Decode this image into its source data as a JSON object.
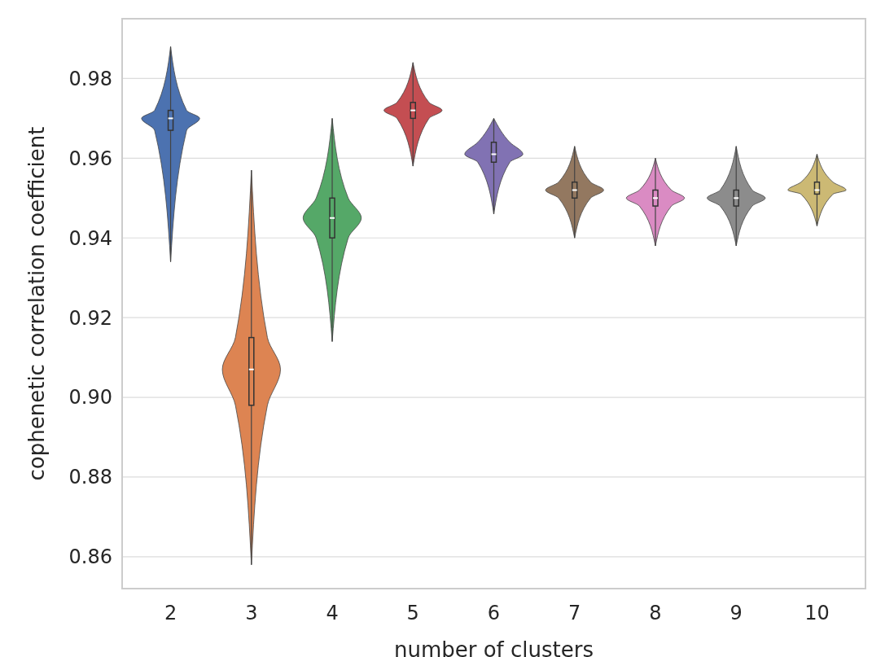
{
  "chart_data": {
    "type": "box",
    "xlabel": "number of clusters",
    "ylabel": "cophenetic correlation coefficient",
    "categories": [
      "2",
      "3",
      "4",
      "5",
      "6",
      "7",
      "8",
      "9",
      "10"
    ],
    "boxes": [
      {
        "low": 0.934,
        "q1": 0.967,
        "median": 0.97,
        "q3": 0.972,
        "high": 0.988
      },
      {
        "low": 0.858,
        "q1": 0.898,
        "median": 0.907,
        "q3": 0.915,
        "high": 0.957
      },
      {
        "low": 0.914,
        "q1": 0.94,
        "median": 0.945,
        "q3": 0.95,
        "high": 0.97
      },
      {
        "low": 0.958,
        "q1": 0.97,
        "median": 0.972,
        "q3": 0.974,
        "high": 0.984
      },
      {
        "low": 0.946,
        "q1": 0.959,
        "median": 0.961,
        "q3": 0.964,
        "high": 0.97
      },
      {
        "low": 0.94,
        "q1": 0.95,
        "median": 0.952,
        "q3": 0.954,
        "high": 0.963
      },
      {
        "low": 0.938,
        "q1": 0.948,
        "median": 0.95,
        "q3": 0.952,
        "high": 0.96
      },
      {
        "low": 0.938,
        "q1": 0.948,
        "median": 0.95,
        "q3": 0.952,
        "high": 0.963
      },
      {
        "low": 0.943,
        "q1": 0.951,
        "median": 0.952,
        "q3": 0.954,
        "high": 0.961
      }
    ],
    "colors": [
      "#4c72b0",
      "#dd8452",
      "#55a868",
      "#c44e52",
      "#8172b3",
      "#937860",
      "#da8bc3",
      "#8c8c8c",
      "#ccb974"
    ],
    "ylim": [
      0.852,
      0.995
    ],
    "yticks": [
      0.86,
      0.88,
      {
        "value": 0.9,
        "label": "0.90"
      },
      0.92,
      0.94,
      0.96,
      0.98
    ],
    "grid": "y"
  }
}
